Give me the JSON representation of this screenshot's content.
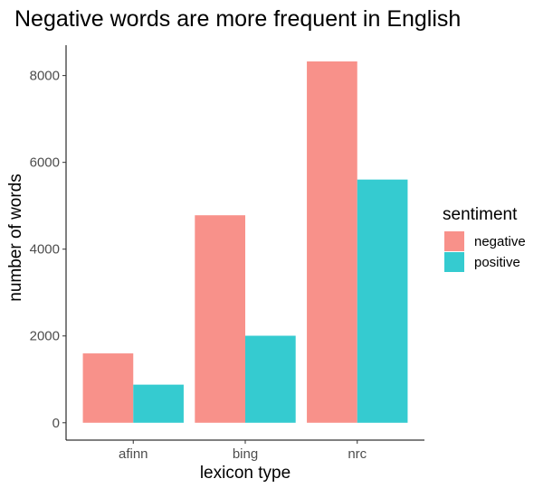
{
  "chart_data": {
    "type": "bar",
    "title": "Negative words are more frequent in English",
    "xlabel": "lexicon type",
    "ylabel": "number of words",
    "categories": [
      "afinn",
      "bing",
      "nrc"
    ],
    "series": [
      {
        "name": "negative",
        "color": "#F8918A",
        "values": [
          1598,
          4781,
          8326
        ]
      },
      {
        "name": "positive",
        "color": "#35CBD0",
        "values": [
          878,
          2005,
          5604
        ]
      }
    ],
    "ylim": [
      -400,
      8700
    ],
    "yticks": [
      0,
      2000,
      4000,
      6000,
      8000
    ],
    "ytick_labels": [
      "0",
      "2000",
      "4000",
      "6000",
      "8000"
    ],
    "legend": {
      "title": "sentiment",
      "position": "right"
    },
    "grid": false
  }
}
